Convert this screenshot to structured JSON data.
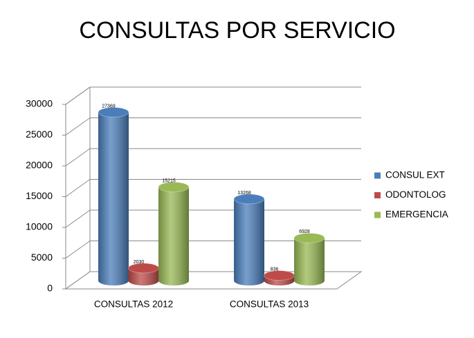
{
  "chart_data": {
    "type": "bar",
    "title": "CONSULTAS POR SERVICIO",
    "categories": [
      "CONSULTAS 2012",
      "CONSULTAS 2013"
    ],
    "series": [
      {
        "name": "CONSUL EXT",
        "color": "#4a7ebb",
        "values": [
          27369,
          13268
        ]
      },
      {
        "name": "ODONTOLOG",
        "color": "#be4b48",
        "values": [
          2030,
          836
        ]
      },
      {
        "name": "EMERGENCIA",
        "color": "#98b954",
        "values": [
          15215,
          6928
        ]
      }
    ],
    "ylim": [
      0,
      30000
    ],
    "yticks": [
      0,
      5000,
      10000,
      15000,
      20000,
      25000,
      30000
    ],
    "grid": true,
    "legend": "right"
  }
}
